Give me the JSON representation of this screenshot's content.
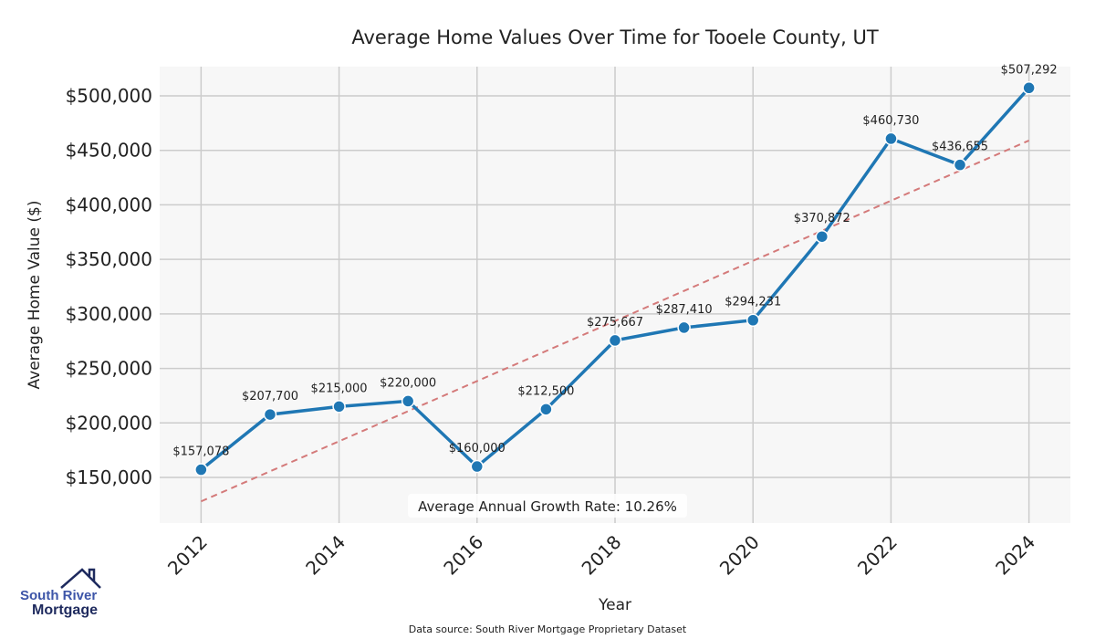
{
  "chart_data": {
    "type": "line",
    "title": "Average Home Values Over Time for Tooele County, UT",
    "xlabel": "Year",
    "ylabel": "Average Home Value ($)",
    "x": [
      2012,
      2013,
      2014,
      2015,
      2016,
      2017,
      2018,
      2019,
      2020,
      2021,
      2022,
      2023,
      2024
    ],
    "values": [
      157078,
      207700,
      215000,
      220000,
      160000,
      212500,
      275667,
      287410,
      294231,
      370872,
      460730,
      436655,
      507292
    ],
    "data_labels": [
      "$157,078",
      "$207,700",
      "$215,000",
      "$220,000",
      "$160,000",
      "$212,500",
      "$275,667",
      "$287,410",
      "$294,231",
      "$370,872",
      "$460,730",
      "$436,655",
      "$507,292"
    ],
    "xticks": [
      "2012",
      "2014",
      "2016",
      "2018",
      "2020",
      "2022",
      "2024"
    ],
    "yticks": [
      "$150,000",
      "$200,000",
      "$250,000",
      "$300,000",
      "$350,000",
      "$400,000",
      "$450,000",
      "$500,000"
    ],
    "ytick_values": [
      150000,
      200000,
      250000,
      300000,
      350000,
      400000,
      450000,
      500000
    ],
    "xlim": [
      2011.4,
      2024.6
    ],
    "ylim": [
      108130,
      526800
    ],
    "trend": {
      "x": [
        2012,
        2024
      ],
      "y": [
        128000,
        459000
      ]
    },
    "annotation": "Average Annual Growth Rate: 10.26%",
    "grid": true,
    "line_color": "#1f77b4",
    "trend_color": "#d47a7a"
  },
  "source": "Data source: South River Mortgage Proprietary Dataset",
  "logo": {
    "line1": "South River",
    "line2": "Mortgage"
  }
}
